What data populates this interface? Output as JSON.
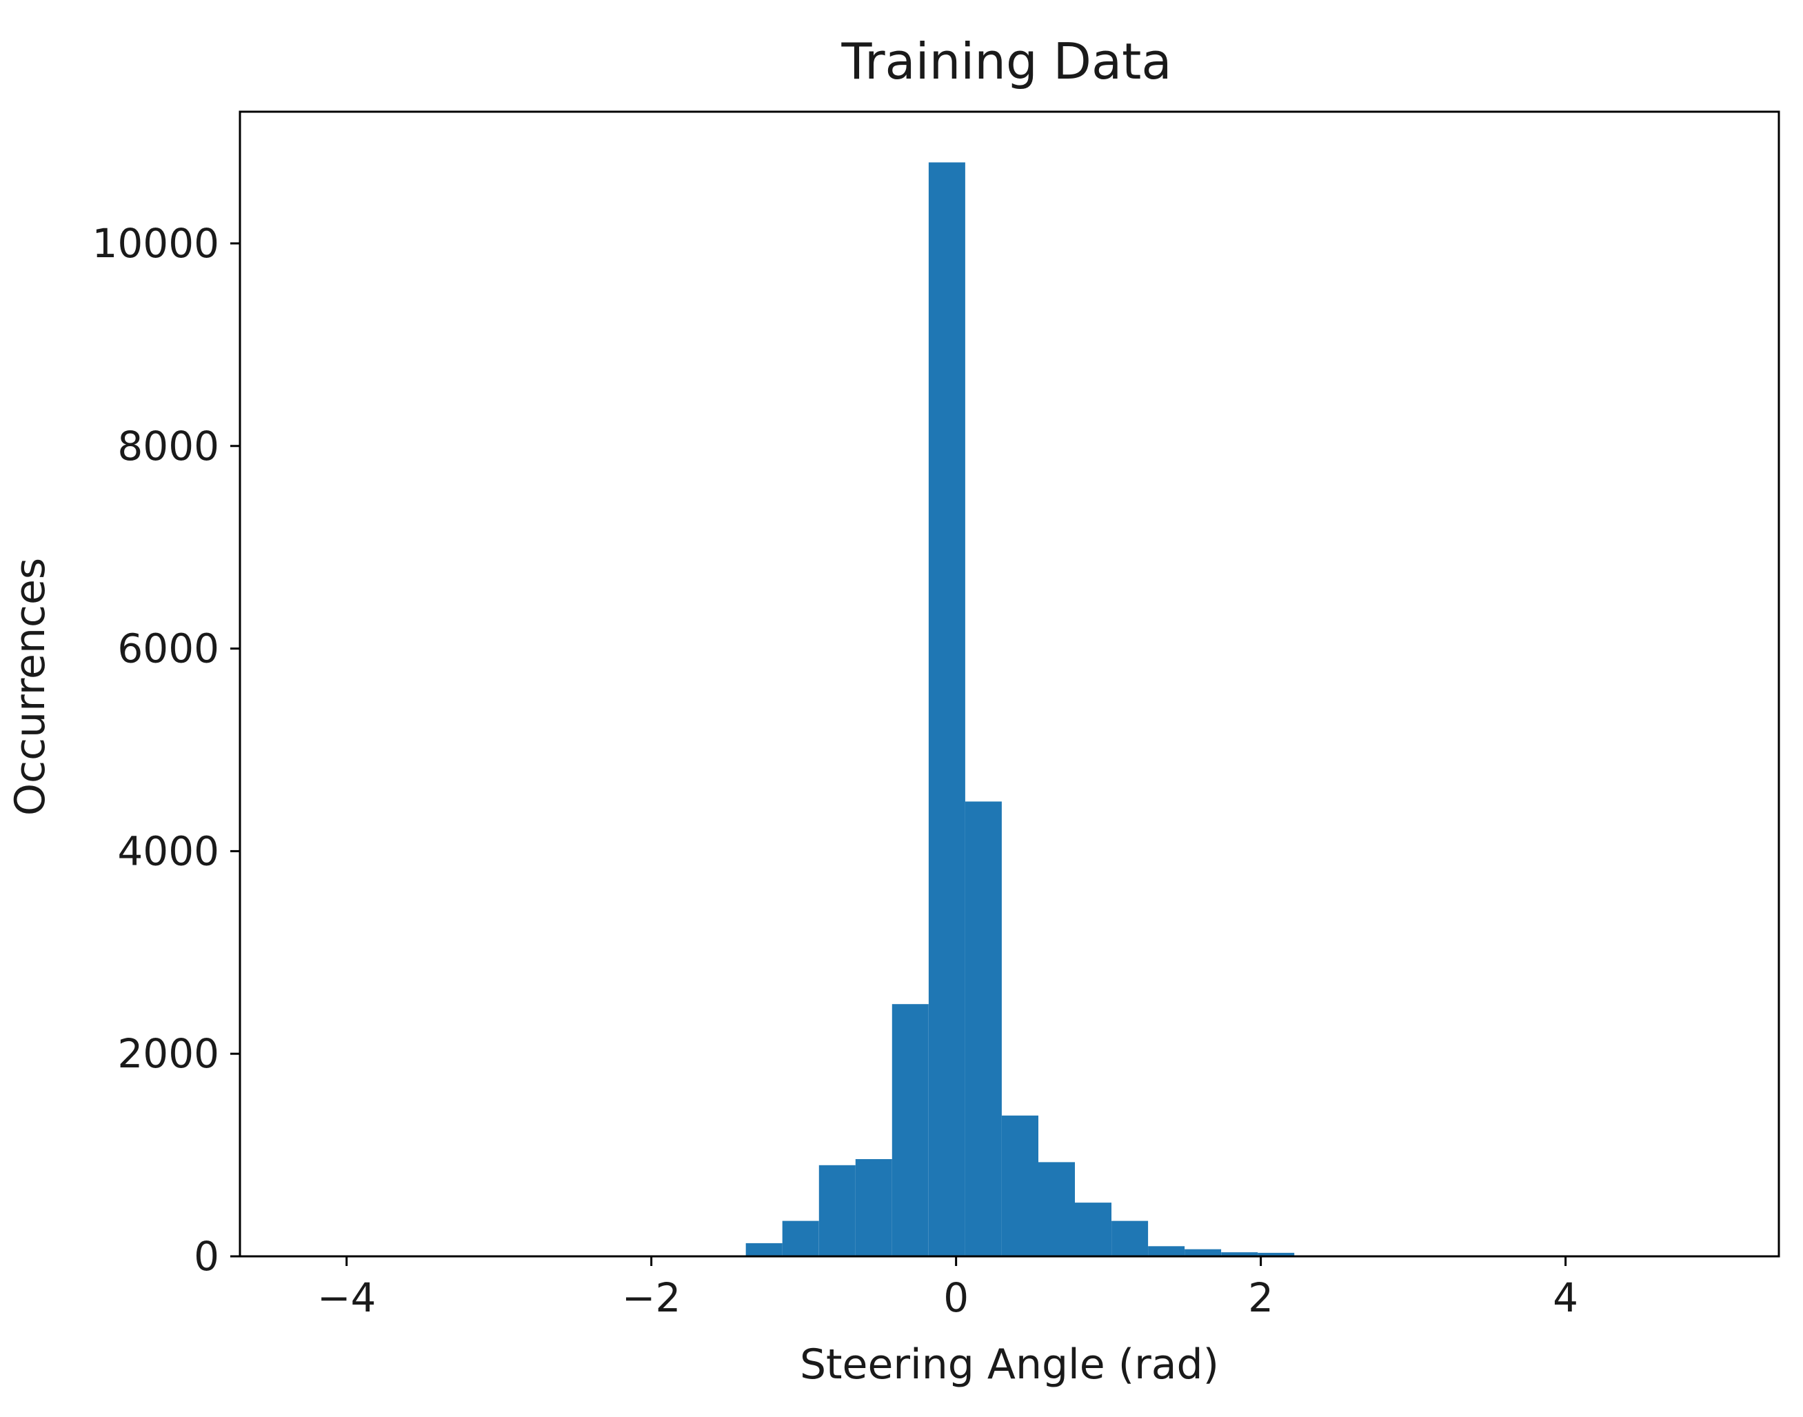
{
  "chart_data": {
    "type": "bar",
    "title": "Training Data",
    "xlabel": "Steering Angle (rad)",
    "ylabel": "Occurrences",
    "xlim": [
      -4.7,
      5.4
    ],
    "ylim": [
      0,
      11300
    ],
    "x_ticks": [
      -4,
      -2,
      0,
      2,
      4
    ],
    "x_tick_labels": [
      "−4",
      "−2",
      "0",
      "2",
      "4"
    ],
    "y_ticks": [
      0,
      2000,
      4000,
      6000,
      8000,
      10000
    ],
    "y_tick_labels": [
      "0",
      "2000",
      "4000",
      "6000",
      "8000",
      "10000"
    ],
    "grid": false,
    "bar_color": "#1f77b4",
    "bins": [
      {
        "x0": -1.38,
        "x1": -1.14,
        "value": 130
      },
      {
        "x0": -1.14,
        "x1": -0.9,
        "value": 350
      },
      {
        "x0": -0.9,
        "x1": -0.66,
        "value": 900
      },
      {
        "x0": -0.66,
        "x1": -0.42,
        "value": 960
      },
      {
        "x0": -0.42,
        "x1": -0.18,
        "value": 2490
      },
      {
        "x0": -0.18,
        "x1": 0.06,
        "value": 10800
      },
      {
        "x0": 0.06,
        "x1": 0.3,
        "value": 4490
      },
      {
        "x0": 0.3,
        "x1": 0.54,
        "value": 1390
      },
      {
        "x0": 0.54,
        "x1": 0.78,
        "value": 930
      },
      {
        "x0": 0.78,
        "x1": 1.02,
        "value": 530
      },
      {
        "x0": 1.02,
        "x1": 1.26,
        "value": 350
      },
      {
        "x0": 1.26,
        "x1": 1.5,
        "value": 100
      },
      {
        "x0": 1.5,
        "x1": 1.74,
        "value": 70
      },
      {
        "x0": 1.74,
        "x1": 1.98,
        "value": 40
      },
      {
        "x0": 1.98,
        "x1": 2.22,
        "value": 35
      }
    ]
  }
}
